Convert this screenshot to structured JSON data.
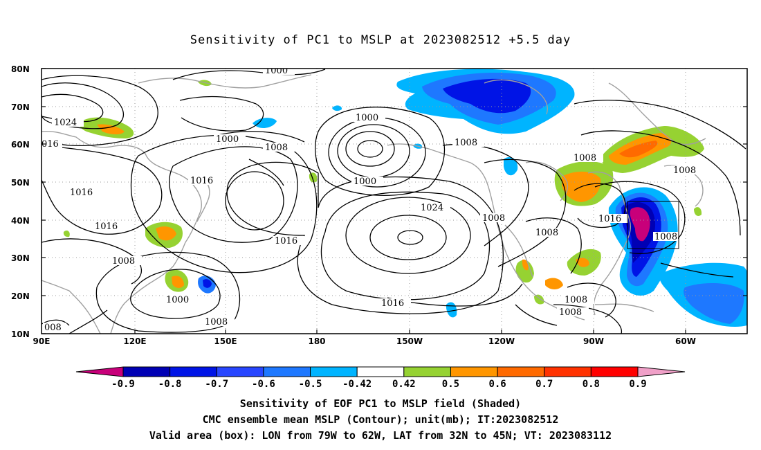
{
  "title": "Sensitivity of PC1 to MSLP at 2023082512 +5.5 day",
  "lat_labels": [
    "80N",
    "70N",
    "60N",
    "50N",
    "40N",
    "30N",
    "20N",
    "10N"
  ],
  "lon_labels": [
    "90E",
    "120E",
    "150E",
    "180",
    "150W",
    "120W",
    "90W",
    "60W"
  ],
  "contour_labels": [
    {
      "text": "1000"
    },
    {
      "text": "1024"
    },
    {
      "text": "016"
    },
    {
      "text": "1000"
    },
    {
      "text": "1008"
    },
    {
      "text": "1000"
    },
    {
      "text": "1000"
    },
    {
      "text": "1008"
    },
    {
      "text": "1008"
    },
    {
      "text": "1008"
    },
    {
      "text": "1016"
    },
    {
      "text": "1016"
    },
    {
      "text": "1016"
    },
    {
      "text": "1024"
    },
    {
      "text": "1016"
    },
    {
      "text": "1008"
    },
    {
      "text": "1008"
    },
    {
      "text": "1016"
    },
    {
      "text": "1008"
    },
    {
      "text": "1000"
    },
    {
      "text": "1008"
    },
    {
      "text": "1016"
    },
    {
      "text": "1008"
    },
    {
      "text": "1008"
    },
    {
      "text": "008"
    }
  ],
  "colorbar": {
    "labels": [
      "-0.9",
      "-0.8",
      "-0.7",
      "-0.6",
      "-0.5",
      "-0.42",
      "0.42",
      "0.5",
      "0.6",
      "0.7",
      "0.8",
      "0.9"
    ],
    "colors": [
      "#c8007a",
      "#0000b4",
      "#0014e6",
      "#2846ff",
      "#1e78ff",
      "#00b4ff",
      "#ffffff",
      "#96d232",
      "#ff9600",
      "#ff6a00",
      "#ff3200",
      "#ff0000",
      "#f0a0c8"
    ]
  },
  "footer": {
    "line1": "Sensitivity of EOF PC1 to MSLP field (Shaded)",
    "line2": "CMC ensemble mean MSLP (Contour); unit(mb); IT:2023082512",
    "line3": "Valid area (box): LON from 79W to 62W, LAT from 32N to 45N; VT: 2023083112"
  }
}
